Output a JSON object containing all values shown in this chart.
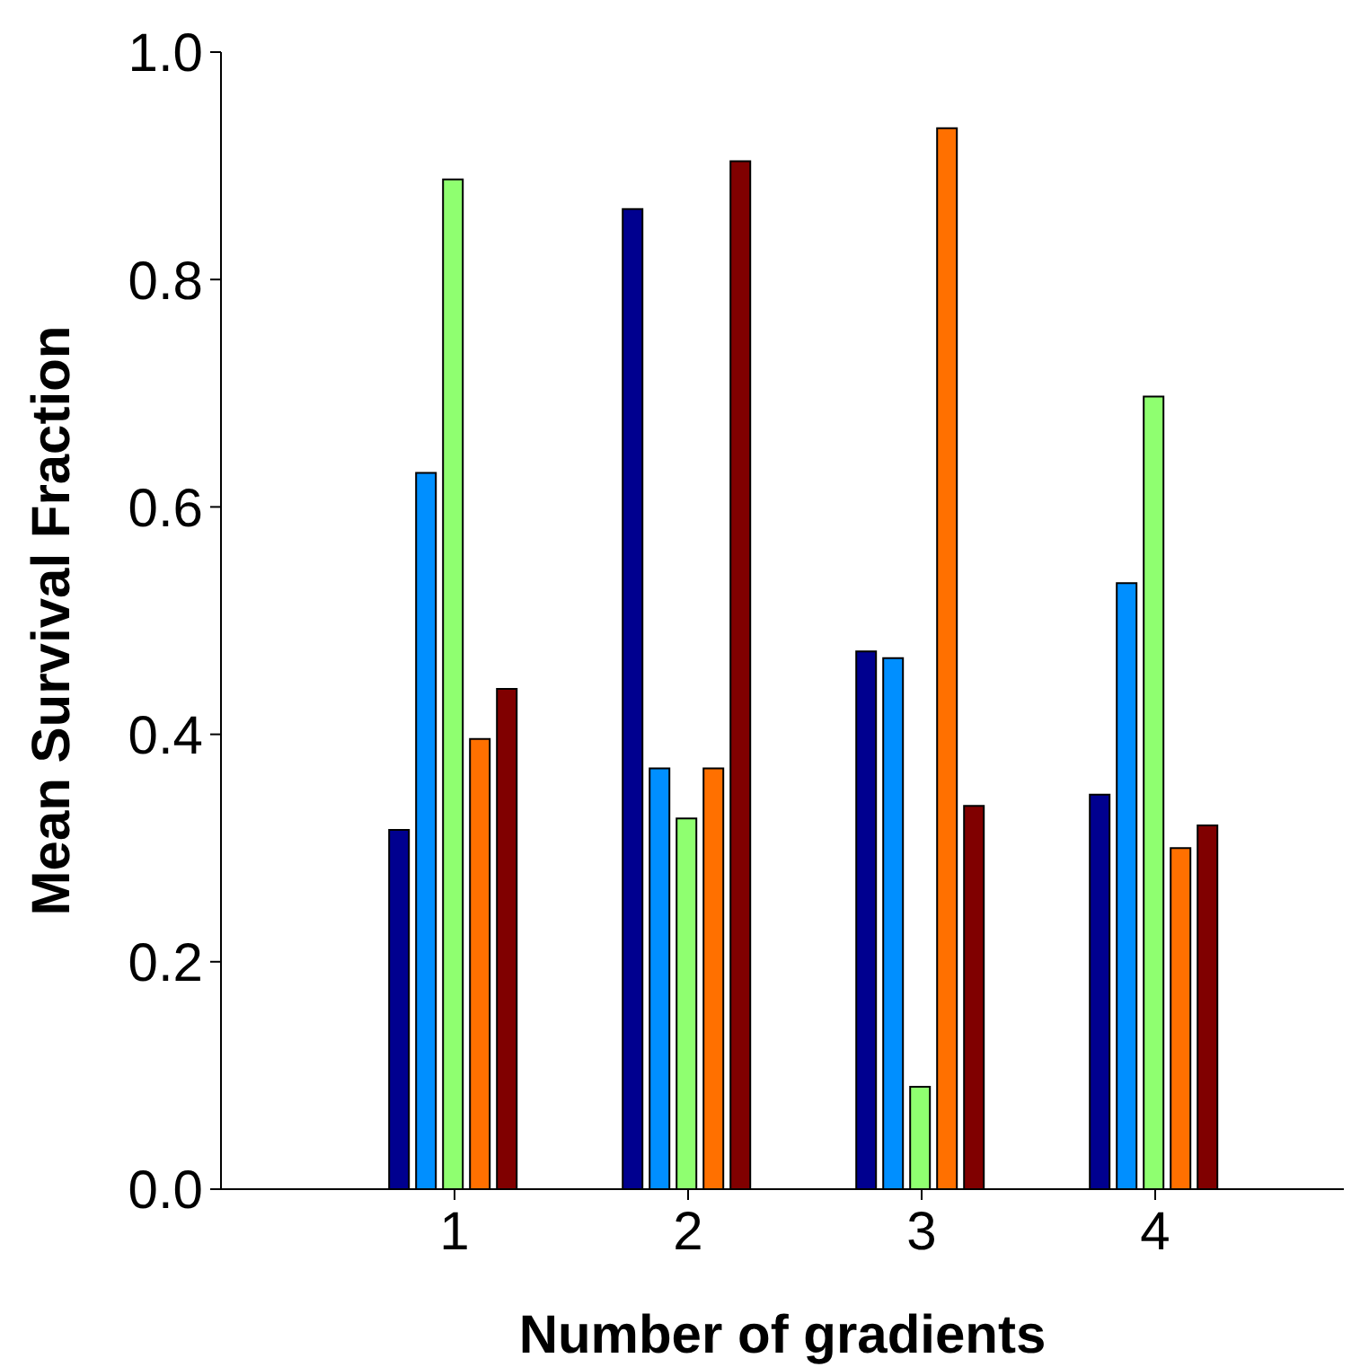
{
  "chart_data": {
    "type": "bar",
    "xlabel": "Number of gradients",
    "ylabel": "Mean Survival Fraction",
    "categories": [
      "1",
      "2",
      "3",
      "4"
    ],
    "series": [
      {
        "color": "#00008f",
        "values": [
          0.316,
          0.862,
          0.473,
          0.347
        ]
      },
      {
        "color": "#008fff",
        "values": [
          0.63,
          0.37,
          0.467,
          0.533
        ]
      },
      {
        "color": "#8fff70",
        "values": [
          0.888,
          0.326,
          0.09,
          0.697
        ]
      },
      {
        "color": "#ff7000",
        "values": [
          0.396,
          0.37,
          0.933,
          0.3
        ]
      },
      {
        "color": "#800000",
        "values": [
          0.44,
          0.904,
          0.337,
          0.32
        ]
      }
    ],
    "ylim": [
      0,
      1
    ],
    "yticks": [
      {
        "value": 0,
        "label": "0.0"
      },
      {
        "value": 0.2,
        "label": "0.2"
      },
      {
        "value": 0.4,
        "label": "0.4"
      },
      {
        "value": 0.6,
        "label": "0.6"
      },
      {
        "value": 0.8,
        "label": "0.8"
      },
      {
        "value": 1,
        "label": "1.0"
      }
    ],
    "grid": false,
    "legend": false
  }
}
